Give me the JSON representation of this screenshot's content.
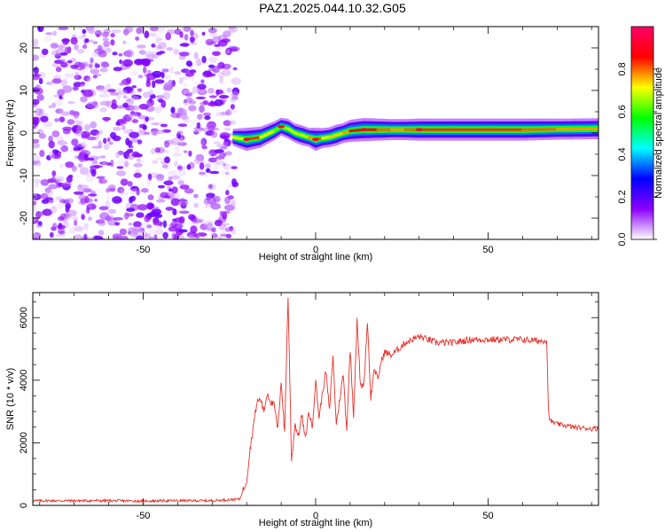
{
  "figure": {
    "title": "PAZ1.2025.044.10.32.G05"
  },
  "chart_data": [
    {
      "type": "heatmap",
      "xlabel": "Height of straight line (km)",
      "ylabel": "Frequency (Hz)",
      "xlim": [
        -82,
        82
      ],
      "ylim": [
        -25,
        25
      ],
      "xticks": [
        -50,
        0,
        50
      ],
      "yticks": [
        -20,
        -10,
        0,
        10,
        20
      ],
      "colorbar": {
        "label": "Normalized spectral amplitude",
        "range": [
          0.0,
          1.0
        ],
        "ticks": [
          0.0,
          0.2,
          0.4,
          0.6,
          0.8
        ],
        "tick_labels": [
          "0.0",
          "0.2",
          "0.4",
          "0.6",
          "0.8"
        ],
        "colormap": [
          "#ffffff",
          "#8b00ff",
          "#0000ff",
          "#00ffff",
          "#00ff00",
          "#ffff00",
          "#ff0000",
          "#ff0066"
        ]
      },
      "noise_region_x": [
        -82,
        -23
      ],
      "ridge": {
        "x": [
          -24,
          -20,
          -16,
          -12,
          -10,
          -8,
          -6,
          -4,
          -2,
          0,
          2,
          4,
          6,
          8,
          10,
          14,
          18,
          22,
          26,
          30,
          40,
          50,
          60,
          70,
          82
        ],
        "y": [
          -1.0,
          -1.5,
          -1.0,
          0.5,
          1.5,
          1.0,
          0.0,
          -0.5,
          -1.0,
          -1.5,
          -1.2,
          -1.0,
          -0.5,
          0.0,
          0.5,
          0.8,
          0.8,
          0.8,
          0.8,
          0.8,
          0.8,
          0.8,
          0.8,
          0.9,
          1.0
        ],
        "amplitude": [
          0.3,
          0.9,
          0.7,
          0.5,
          0.4,
          0.6,
          0.5,
          0.6,
          0.5,
          0.9,
          0.6,
          0.6,
          0.7,
          0.6,
          0.8,
          0.9,
          0.8,
          0.7,
          0.7,
          0.8,
          0.8,
          0.8,
          0.8,
          0.7,
          0.7
        ]
      }
    },
    {
      "type": "line",
      "xlabel": "Height of straight line (km)",
      "ylabel": "SNR (10 * v/v)",
      "xlim": [
        -82,
        82
      ],
      "ylim": [
        0,
        6800
      ],
      "xticks": [
        -50,
        0,
        50
      ],
      "yticks": [
        0,
        2000,
        4000,
        6000
      ],
      "color": "#e8302a",
      "series": [
        {
          "x": [
            -82,
            -70,
            -60,
            -50,
            -40,
            -30,
            -22,
            -20,
            -19,
            -18,
            -17,
            -16,
            -15,
            -14,
            -13,
            -12,
            -11,
            -10,
            -9,
            -8,
            -7,
            -6,
            -5,
            -4,
            -3,
            -2,
            -1,
            0,
            1,
            2,
            3,
            4,
            5,
            6,
            7,
            8,
            9,
            10,
            11,
            12,
            13,
            14,
            15,
            16,
            17,
            18,
            19,
            20,
            22,
            24,
            26,
            28,
            30,
            35,
            40,
            45,
            50,
            55,
            60,
            65,
            67,
            67.5,
            68,
            70,
            75,
            80,
            82
          ],
          "y": [
            150,
            150,
            150,
            140,
            150,
            150,
            200,
            800,
            1800,
            2600,
            3300,
            3400,
            3000,
            3600,
            3300,
            3200,
            2400,
            4000,
            2300,
            6700,
            1400,
            2600,
            2200,
            2900,
            2100,
            3000,
            2500,
            4000,
            2800,
            3600,
            4300,
            3000,
            4800,
            2600,
            3400,
            4200,
            2400,
            5000,
            2900,
            5900,
            3800,
            3900,
            5900,
            3400,
            4400,
            4000,
            4600,
            4900,
            4800,
            5000,
            5200,
            5300,
            5400,
            5200,
            5200,
            5300,
            5300,
            5300,
            5300,
            5250,
            5300,
            3000,
            2700,
            2600,
            2500,
            2450,
            2450
          ]
        }
      ]
    }
  ]
}
